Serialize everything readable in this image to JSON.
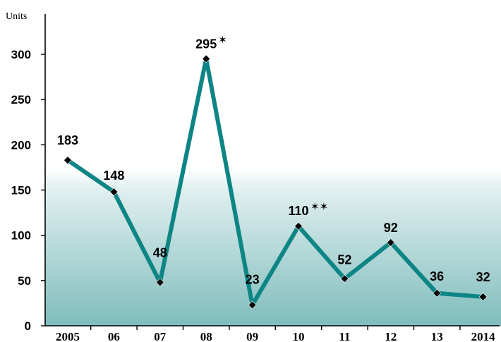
{
  "chart_data": {
    "type": "line",
    "title": "",
    "xlabel": "",
    "ylabel": "Units",
    "categories": [
      "2005",
      "06",
      "07",
      "08",
      "09",
      "10",
      "11",
      "12",
      "13",
      "2014"
    ],
    "series": [
      {
        "values": [
          183,
          148,
          48,
          295,
          23,
          110,
          52,
          92,
          36,
          32
        ],
        "color": "#0E8585"
      }
    ],
    "data_labels": [
      "183",
      "148",
      "48",
      "295",
      "23",
      "110",
      "52",
      "92",
      "36",
      "32"
    ],
    "annotations": [
      "",
      "",
      "",
      "*",
      "",
      "**",
      "",
      "",
      "",
      ""
    ],
    "ylim": [
      0,
      300
    ],
    "yticks": [
      "0",
      "50",
      "100",
      "150",
      "200",
      "250",
      "300"
    ],
    "grid": false,
    "legend": "none",
    "marker": "diamond",
    "marker_color": "#000000",
    "background_gradient": [
      "#ffffff",
      "#7fbcbc"
    ]
  }
}
